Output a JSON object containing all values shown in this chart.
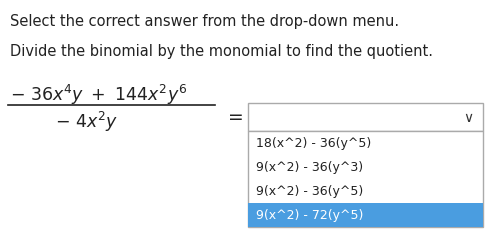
{
  "bg_color": "#ffffff",
  "title_line1": "Select the correct answer from the drop-down menu.",
  "title_line2": "Divide the binomial by the monomial to find the quotient.",
  "numerator_text": "$-\\ 36x^4y\\ +\\ 144x^2y^6$",
  "denominator_text": "$-\\ 4x^2y$",
  "equals": "=",
  "dropdown_options": [
    "18(x^2) - 36(y^5)",
    "9(x^2) - 36(y^3)",
    "9(x^2) - 36(y^5)",
    "9(x^2) - 72(y^5)"
  ],
  "selected_index": 3,
  "selected_color": "#4a9de0",
  "dropdown_border_color": "#aaaaaa",
  "text_color": "#222222",
  "font_size_main": 10.5,
  "font_size_math": 12.5,
  "font_size_dropdown": 9.0,
  "chevron": "∨"
}
